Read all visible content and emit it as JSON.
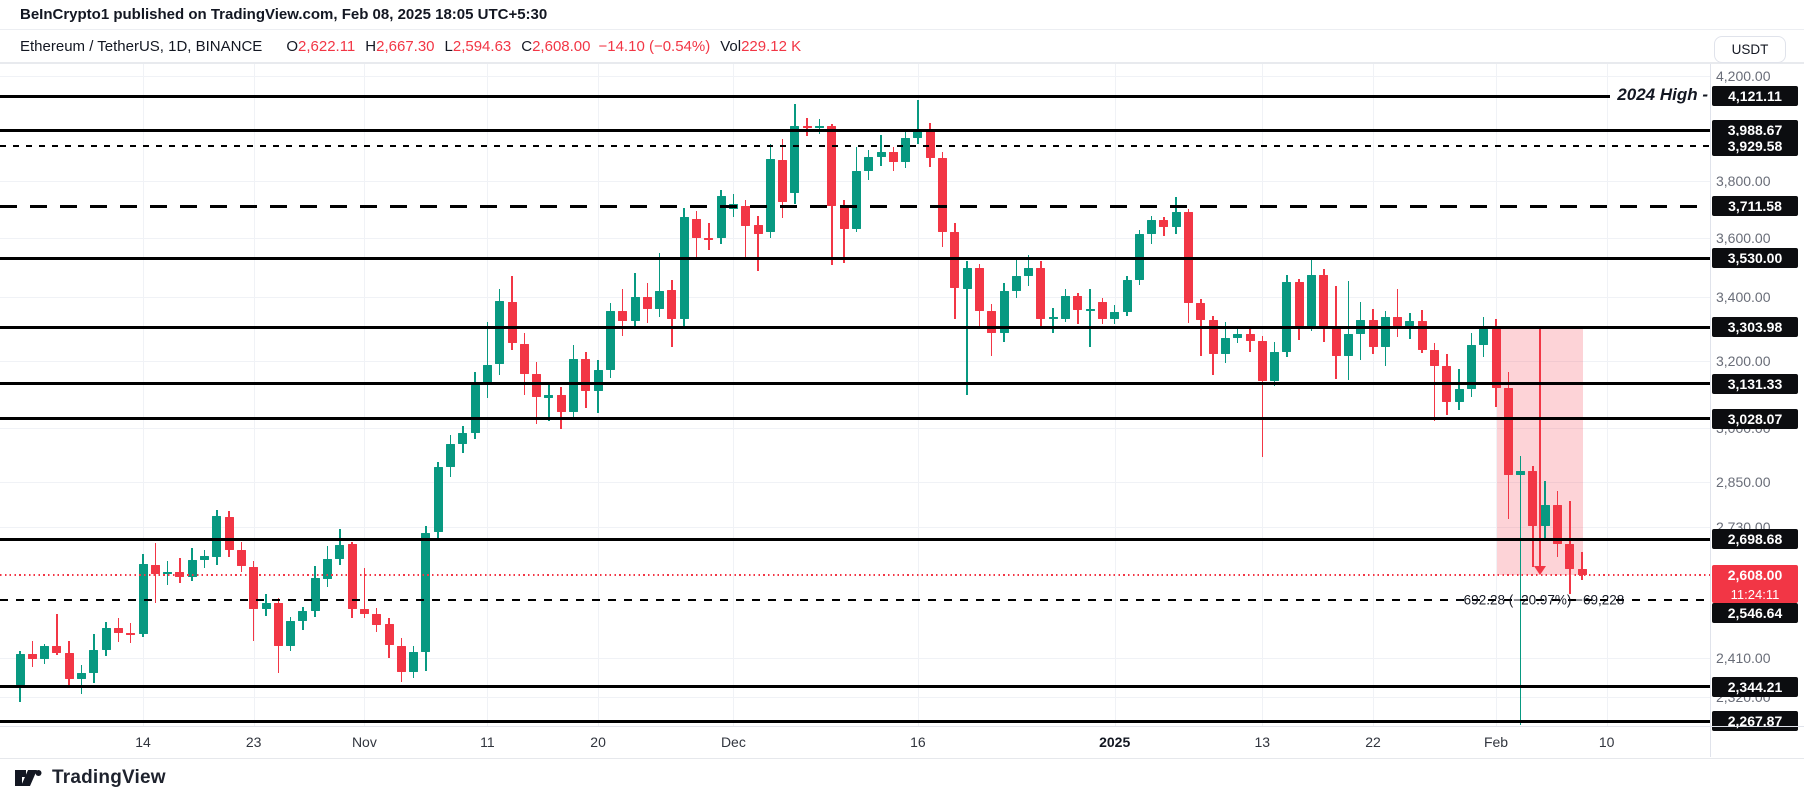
{
  "header": {
    "publish_text": "BeInCrypto1 published on TradingView.com, Feb 08, 2025 18:05 UTC+5:30"
  },
  "symbol_bar": {
    "title": "Ethereum / TetherUS, 1D, BINANCE",
    "o_label": "O",
    "o": "2,622.11",
    "h_label": "H",
    "h": "2,667.30",
    "l_label": "L",
    "l": "2,594.63",
    "c_label": "C",
    "c": "2,608.00",
    "change": "−14.10 (−0.54%)",
    "vol_label": "Vol",
    "vol": "229.12 K"
  },
  "axis": {
    "currency": "USDT"
  },
  "footer": {
    "brand": "TradingView"
  },
  "chart_data": {
    "type": "candlestick",
    "symbol": "ETHUSDT",
    "interval": "1D",
    "exchange": "BINANCE",
    "grid": true,
    "scale": "log",
    "ylim": [
      2230,
      4260
    ],
    "candles_format": [
      "date",
      "open",
      "high",
      "low",
      "close"
    ],
    "candles": [
      [
        "Oct 4",
        2348,
        2425,
        2310,
        2418
      ],
      [
        "Oct 5",
        2418,
        2448,
        2388,
        2406
      ],
      [
        "Oct 6",
        2406,
        2442,
        2395,
        2436
      ],
      [
        "Oct 7",
        2436,
        2512,
        2415,
        2421
      ],
      [
        "Oct 8",
        2421,
        2448,
        2340,
        2362
      ],
      [
        "Oct 9",
        2362,
        2392,
        2328,
        2374
      ],
      [
        "Oct 10",
        2374,
        2466,
        2352,
        2428
      ],
      [
        "Oct 11",
        2428,
        2494,
        2414,
        2480
      ],
      [
        "Oct 12",
        2480,
        2502,
        2446,
        2468
      ],
      [
        "Oct 13",
        2468,
        2492,
        2444,
        2464
      ],
      [
        "Oct 14",
        2464,
        2662,
        2458,
        2636
      ],
      [
        "Oct 15",
        2634,
        2690,
        2538,
        2610
      ],
      [
        "Oct 16",
        2610,
        2642,
        2584,
        2616
      ],
      [
        "Oct 17",
        2616,
        2650,
        2588,
        2604
      ],
      [
        "Oct 18",
        2602,
        2676,
        2594,
        2646
      ],
      [
        "Oct 19",
        2646,
        2672,
        2626,
        2656
      ],
      [
        "Oct 20",
        2652,
        2776,
        2634,
        2760
      ],
      [
        "Oct 21",
        2756,
        2772,
        2652,
        2672
      ],
      [
        "Oct 22",
        2672,
        2692,
        2616,
        2630
      ],
      [
        "Oct 23",
        2628,
        2642,
        2448,
        2524
      ],
      [
        "Oct 24",
        2524,
        2562,
        2508,
        2540
      ],
      [
        "Oct 25",
        2540,
        2552,
        2374,
        2436
      ],
      [
        "Oct 26",
        2436,
        2506,
        2426,
        2496
      ],
      [
        "Oct 27",
        2496,
        2530,
        2474,
        2520
      ],
      [
        "Oct 28",
        2520,
        2630,
        2506,
        2600
      ],
      [
        "Oct 29",
        2598,
        2682,
        2578,
        2648
      ],
      [
        "Oct 30",
        2648,
        2726,
        2634,
        2684
      ],
      [
        "Oct 31",
        2686,
        2692,
        2504,
        2524
      ],
      [
        "Nov 1",
        2524,
        2626,
        2504,
        2512
      ],
      [
        "Nov 2",
        2512,
        2526,
        2470,
        2486
      ],
      [
        "Nov 3",
        2488,
        2502,
        2408,
        2440
      ],
      [
        "Nov 4",
        2438,
        2456,
        2354,
        2378
      ],
      [
        "Nov 5",
        2378,
        2436,
        2364,
        2422
      ],
      [
        "Nov 6",
        2422,
        2732,
        2380,
        2716
      ],
      [
        "Nov 7",
        2716,
        2906,
        2700,
        2892
      ],
      [
        "Nov 8",
        2892,
        2982,
        2864,
        2956
      ],
      [
        "Nov 9",
        2956,
        3006,
        2930,
        2986
      ],
      [
        "Nov 10",
        2986,
        3166,
        2970,
        3126
      ],
      [
        "Nov 11",
        3126,
        3322,
        3088,
        3186
      ],
      [
        "Nov 12",
        3190,
        3426,
        3158,
        3390
      ],
      [
        "Nov 13",
        3386,
        3470,
        3234,
        3256
      ],
      [
        "Nov 14",
        3252,
        3286,
        3098,
        3160
      ],
      [
        "Nov 15",
        3160,
        3196,
        3014,
        3090
      ],
      [
        "Nov 16",
        3088,
        3128,
        3020,
        3096
      ],
      [
        "Nov 17",
        3096,
        3122,
        2998,
        3046
      ],
      [
        "Nov 18",
        3046,
        3248,
        3028,
        3206
      ],
      [
        "Nov 19",
        3206,
        3226,
        3058,
        3110
      ],
      [
        "Nov 20",
        3110,
        3202,
        3044,
        3172
      ],
      [
        "Nov 21",
        3172,
        3382,
        3148,
        3356
      ],
      [
        "Nov 22",
        3356,
        3426,
        3278,
        3324
      ],
      [
        "Nov 23",
        3324,
        3480,
        3298,
        3402
      ],
      [
        "Nov 24",
        3402,
        3446,
        3318,
        3362
      ],
      [
        "Nov 25",
        3362,
        3548,
        3338,
        3420
      ],
      [
        "Nov 26",
        3424,
        3456,
        3244,
        3330
      ],
      [
        "Nov 27",
        3330,
        3702,
        3304,
        3670
      ],
      [
        "Nov 28",
        3666,
        3692,
        3528,
        3600
      ],
      [
        "Nov 29",
        3600,
        3652,
        3558,
        3596
      ],
      [
        "Nov 30",
        3598,
        3766,
        3578,
        3746
      ],
      [
        "Dec 1",
        3700,
        3752,
        3670,
        3716
      ],
      [
        "Dec 2",
        3712,
        3732,
        3530,
        3640
      ],
      [
        "Dec 3",
        3644,
        3676,
        3488,
        3612
      ],
      [
        "Dec 4",
        3620,
        3936,
        3598,
        3880
      ],
      [
        "Dec 5",
        3876,
        3956,
        3668,
        3724
      ],
      [
        "Dec 6",
        3758,
        4090,
        3718,
        4004
      ],
      [
        "Dec 7",
        4004,
        4036,
        3968,
        3998
      ],
      [
        "Dec 8",
        3998,
        4032,
        3974,
        4006
      ],
      [
        "Dec 9",
        4004,
        4012,
        3508,
        3712
      ],
      [
        "Dec 10",
        3710,
        3732,
        3514,
        3630
      ],
      [
        "Dec 11",
        3630,
        3926,
        3618,
        3836
      ],
      [
        "Dec 12",
        3836,
        3916,
        3804,
        3890
      ],
      [
        "Dec 13",
        3890,
        3972,
        3856,
        3906
      ],
      [
        "Dec 14",
        3906,
        3926,
        3838,
        3868
      ],
      [
        "Dec 15",
        3868,
        3986,
        3848,
        3960
      ],
      [
        "Dec 16",
        3960,
        4107,
        3938,
        3990
      ],
      [
        "Dec 17",
        3990,
        4016,
        3852,
        3886
      ],
      [
        "Dec 18",
        3886,
        3906,
        3568,
        3620
      ],
      [
        "Dec 19",
        3620,
        3652,
        3332,
        3430
      ],
      [
        "Dec 20",
        3428,
        3522,
        3098,
        3496
      ],
      [
        "Dec 21",
        3496,
        3512,
        3304,
        3356
      ],
      [
        "Dec 22",
        3356,
        3380,
        3214,
        3286
      ],
      [
        "Dec 23",
        3286,
        3446,
        3258,
        3422
      ],
      [
        "Dec 24",
        3422,
        3530,
        3398,
        3470
      ],
      [
        "Dec 25",
        3470,
        3542,
        3438,
        3498
      ],
      [
        "Dec 26",
        3498,
        3520,
        3304,
        3332
      ],
      [
        "Dec 27",
        3330,
        3366,
        3286,
        3336
      ],
      [
        "Dec 28",
        3332,
        3428,
        3320,
        3404
      ],
      [
        "Dec 29",
        3404,
        3416,
        3316,
        3358
      ],
      [
        "Dec 30",
        3358,
        3428,
        3244,
        3362
      ],
      [
        "Dec 31",
        3384,
        3398,
        3314,
        3332
      ],
      [
        "Jan 1",
        3332,
        3374,
        3316,
        3354
      ],
      [
        "Jan 2",
        3354,
        3472,
        3340,
        3456
      ],
      [
        "Jan 3",
        3456,
        3628,
        3440,
        3612
      ],
      [
        "Jan 4",
        3612,
        3676,
        3578,
        3660
      ],
      [
        "Jan 5",
        3660,
        3672,
        3604,
        3636
      ],
      [
        "Jan 6",
        3636,
        3744,
        3614,
        3690
      ],
      [
        "Jan 7",
        3690,
        3700,
        3318,
        3382
      ],
      [
        "Jan 8",
        3382,
        3396,
        3216,
        3326
      ],
      [
        "Jan 9",
        3326,
        3340,
        3156,
        3222
      ],
      [
        "Jan 10",
        3222,
        3322,
        3192,
        3270
      ],
      [
        "Jan 11",
        3270,
        3310,
        3254,
        3284
      ],
      [
        "Jan 12",
        3284,
        3300,
        3226,
        3262
      ],
      [
        "Jan 13",
        3262,
        3276,
        2920,
        3140
      ],
      [
        "Jan 14",
        3140,
        3258,
        3124,
        3226
      ],
      [
        "Jan 15",
        3226,
        3474,
        3212,
        3452
      ],
      [
        "Jan 16",
        3452,
        3460,
        3264,
        3308
      ],
      [
        "Jan 17",
        3308,
        3526,
        3292,
        3474
      ],
      [
        "Jan 18",
        3474,
        3494,
        3258,
        3308
      ],
      [
        "Jan 19",
        3308,
        3438,
        3144,
        3216
      ],
      [
        "Jan 20",
        3216,
        3454,
        3142,
        3284
      ],
      [
        "Jan 21",
        3284,
        3384,
        3204,
        3328
      ],
      [
        "Jan 22",
        3328,
        3364,
        3222,
        3242
      ],
      [
        "Jan 23",
        3242,
        3356,
        3184,
        3338
      ],
      [
        "Jan 24",
        3338,
        3428,
        3274,
        3310
      ],
      [
        "Jan 25",
        3310,
        3350,
        3268,
        3324
      ],
      [
        "Jan 26",
        3324,
        3358,
        3224,
        3232
      ],
      [
        "Jan 27",
        3232,
        3254,
        3020,
        3184
      ],
      [
        "Jan 28",
        3184,
        3222,
        3040,
        3078
      ],
      [
        "Jan 29",
        3078,
        3176,
        3052,
        3114
      ],
      [
        "Jan 30",
        3114,
        3286,
        3090,
        3248
      ],
      [
        "Jan 31",
        3248,
        3338,
        3212,
        3300
      ],
      [
        "Feb 1",
        3300,
        3332,
        3062,
        3118
      ],
      [
        "Feb 2",
        3118,
        3166,
        2750,
        2870
      ],
      [
        "Feb 3",
        2870,
        2922,
        2260,
        2880
      ],
      [
        "Feb 4",
        2880,
        2894,
        2628,
        2732
      ],
      [
        "Feb 5",
        2732,
        2852,
        2698,
        2788
      ],
      [
        "Feb 6",
        2788,
        2826,
        2654,
        2686
      ],
      [
        "Feb 7",
        2686,
        2798,
        2562,
        2622
      ],
      [
        "Feb 8",
        2622,
        2667,
        2595,
        2608
      ]
    ],
    "x_ticks": [
      {
        "label": "14",
        "day": 10
      },
      {
        "label": "23",
        "day": 19
      },
      {
        "label": "Nov",
        "day": 28
      },
      {
        "label": "11",
        "day": 38
      },
      {
        "label": "20",
        "day": 47
      },
      {
        "label": "Dec",
        "day": 58
      },
      {
        "label": "16",
        "day": 73
      },
      {
        "label": "2025",
        "day": 89,
        "bold": true
      },
      {
        "label": "13",
        "day": 101
      },
      {
        "label": "22",
        "day": 110
      },
      {
        "label": "Feb",
        "day": 120
      },
      {
        "label": "10",
        "day": 129
      }
    ],
    "y_gridlines": [
      {
        "value": 4200,
        "label": "4,200.00"
      },
      {
        "value": 3800,
        "label": "3,800.00"
      },
      {
        "value": 3600,
        "label": "3,600.00"
      },
      {
        "value": 3400,
        "label": "3,400.00"
      },
      {
        "value": 3200,
        "label": "3,200.00"
      },
      {
        "value": 3000,
        "label": "3,000.00"
      },
      {
        "value": 2850,
        "label": "2,850.00"
      },
      {
        "value": 2730,
        "label": "2,730.00"
      },
      {
        "value": 2410,
        "label": "2,410.00"
      },
      {
        "value": 2320,
        "label": "2,320.00"
      }
    ],
    "levels_solid": [
      {
        "value": 4121.11,
        "label": "4,121.11",
        "ray_end_x": 1610,
        "tag": "2024 High -"
      },
      {
        "value": 3988.67,
        "label": "3,988.67"
      },
      {
        "value": 3530.0,
        "label": "3,530.00"
      },
      {
        "value": 3303.98,
        "label": "3,303.98"
      },
      {
        "value": 3131.33,
        "label": "3,131.33"
      },
      {
        "value": 3028.07,
        "label": "3,028.07"
      },
      {
        "value": 2698.68,
        "label": "2,698.68"
      },
      {
        "value": 2344.21,
        "label": "2,344.21"
      },
      {
        "value": 2267.87,
        "label": "2,267.87"
      }
    ],
    "levels_dashed": [
      {
        "value": 3929.58,
        "label": "3,929.58",
        "style": "thin"
      },
      {
        "value": 3711.58,
        "label": "3,711.58",
        "style": "thick"
      },
      {
        "value": 2546.64,
        "label": "2,546.64",
        "style": "medium",
        "label_dy": 13
      }
    ],
    "current_price": {
      "value": 2608.0,
      "label": "2,608.00",
      "countdown": "11:24:11",
      "line": "dotted-red"
    },
    "measure": {
      "from_day": 120,
      "to_day": 127,
      "top_price": 3300.28,
      "bottom_price": 2608,
      "text": "−692.28 (−20.97%)  −69,228",
      "text_price": 2546.64
    },
    "colors": {
      "up": "#089981",
      "down": "#F23645",
      "level": "#000000",
      "measure_fill": "rgba(247,73,89,0.24)"
    }
  }
}
